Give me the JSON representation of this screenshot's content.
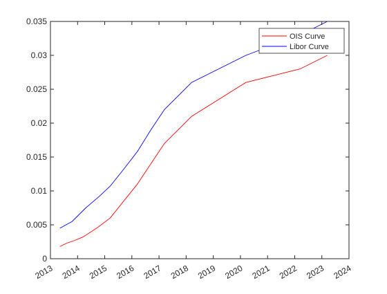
{
  "chart_data": {
    "type": "line",
    "title": "",
    "xlabel": "",
    "ylabel": "",
    "xlim": [
      2013,
      2024
    ],
    "ylim": [
      0,
      0.035
    ],
    "x_ticks": [
      "2013",
      "2014",
      "2015",
      "2016",
      "2017",
      "2018",
      "2019",
      "2020",
      "2021",
      "2022",
      "2023",
      "2024"
    ],
    "y_ticks": [
      "0",
      "0.005",
      "0.01",
      "0.015",
      "0.02",
      "0.025",
      "0.03",
      "0.035"
    ],
    "grid": false,
    "legend_position": "top-right",
    "series": [
      {
        "name": "OIS Curve",
        "color": "#ff0000",
        "points": [
          [
            2013.35,
            0.0018
          ],
          [
            2013.6,
            0.0023
          ],
          [
            2013.9,
            0.0027
          ],
          [
            2014.2,
            0.0032
          ],
          [
            2014.7,
            0.0045
          ],
          [
            2015.2,
            0.006
          ],
          [
            2015.7,
            0.0085
          ],
          [
            2016.2,
            0.011
          ],
          [
            2016.7,
            0.014
          ],
          [
            2017.2,
            0.017
          ],
          [
            2017.7,
            0.019
          ],
          [
            2018.2,
            0.021
          ],
          [
            2019.2,
            0.0235
          ],
          [
            2020.2,
            0.026
          ],
          [
            2021.2,
            0.027
          ],
          [
            2022.2,
            0.028
          ],
          [
            2023.2,
            0.03
          ]
        ]
      },
      {
        "name": "Libor Curve",
        "color": "#0000ff",
        "points": [
          [
            2013.35,
            0.0045
          ],
          [
            2013.8,
            0.0055
          ],
          [
            2014.3,
            0.0075
          ],
          [
            2014.8,
            0.0092
          ],
          [
            2015.2,
            0.0107
          ],
          [
            2015.7,
            0.0132
          ],
          [
            2016.2,
            0.0158
          ],
          [
            2016.7,
            0.019
          ],
          [
            2017.2,
            0.022
          ],
          [
            2017.7,
            0.024
          ],
          [
            2018.2,
            0.026
          ],
          [
            2019.2,
            0.028
          ],
          [
            2020.2,
            0.03
          ],
          [
            2021.2,
            0.0315
          ],
          [
            2022.2,
            0.033
          ],
          [
            2023.2,
            0.035
          ]
        ]
      }
    ]
  }
}
